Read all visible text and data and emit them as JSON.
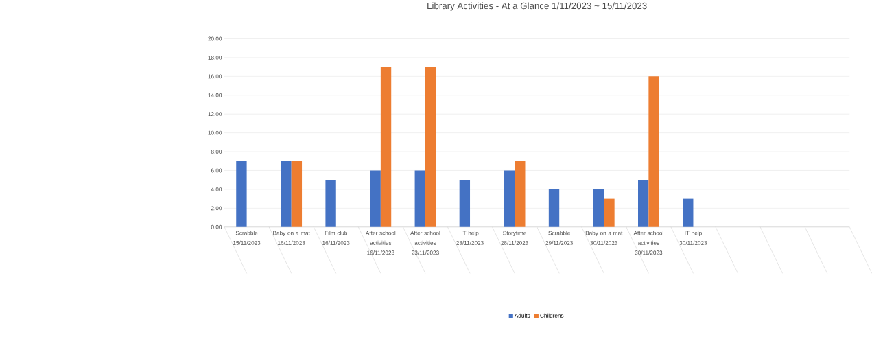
{
  "chart_data": {
    "type": "bar",
    "title": "Library Activities - At a Glance 1/11/2023 ~ 15/11/2023",
    "categories": [
      "Scrabble 15/11/2023",
      "Baby on a mat 16/11/2023",
      "Film club 16/11/2023",
      "After school activities 16/11/2023",
      "After school activities 23/11/2023",
      "IT help 23/11/2023",
      "Storytime 28/11/2023",
      "Scrabble 29/11/2023",
      "Baby on a mat 30/11/2023",
      "After school activities 30/11/2023",
      "IT help 30/11/2023",
      null,
      null,
      null
    ],
    "series": [
      {
        "name": "Adults",
        "color": "#4472c4",
        "values": [
          7,
          7,
          5,
          6,
          6,
          5,
          6,
          4,
          4,
          5,
          3,
          null,
          null,
          null
        ]
      },
      {
        "name": "Childrens",
        "color": "#ed7d31",
        "values": [
          null,
          7,
          null,
          17,
          17,
          null,
          7,
          null,
          3,
          16,
          null,
          null,
          null,
          null
        ]
      }
    ],
    "ylim": [
      0,
      20
    ],
    "yticks": [
      {
        "value": 0,
        "label": "0.00"
      },
      {
        "value": 2,
        "label": "2.00"
      },
      {
        "value": 4,
        "label": "4.00"
      },
      {
        "value": 6,
        "label": "6.00"
      },
      {
        "value": 8,
        "label": "8.00"
      },
      {
        "value": 10,
        "label": "10.00"
      },
      {
        "value": 12,
        "label": "12.00"
      },
      {
        "value": 14,
        "label": "14.00"
      },
      {
        "value": 16,
        "label": "16.00"
      },
      {
        "value": 18,
        "label": "18.00"
      },
      {
        "value": 20,
        "label": "20.00"
      }
    ],
    "grid": "y",
    "legend": "bottom"
  }
}
